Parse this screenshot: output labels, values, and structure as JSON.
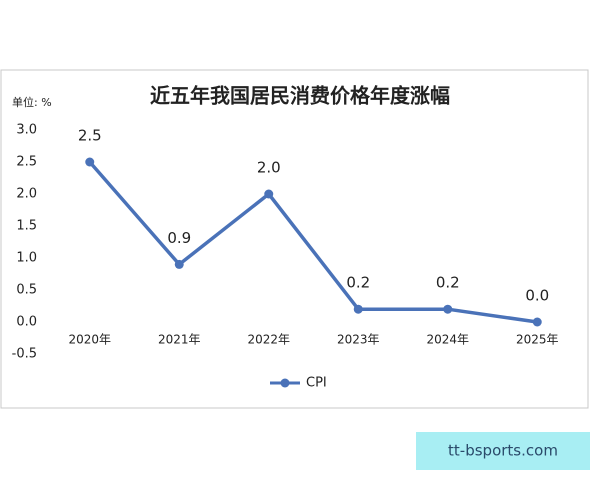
{
  "chart_data": {
    "type": "line",
    "title": "近五年我国居民消费价格年度涨幅",
    "ylabel": "单位:  %",
    "categories": [
      "2020年",
      "2021年",
      "2022年",
      "2023年",
      "2024年",
      "2025年"
    ],
    "series": [
      {
        "name": "CPI",
        "color": "#4a72b8",
        "values": [
          2.5,
          0.9,
          2.0,
          0.2,
          0.2,
          0
        ],
        "value_labels": [
          "2.5",
          "0.9",
          "2.0",
          "0.2",
          "0.2",
          "0.0"
        ]
      }
    ],
    "ylim": [
      -0.5,
      3.0
    ],
    "yticks": [
      {
        "value": 3,
        "label": "3.0"
      },
      2.5,
      {
        "value": 2,
        "label": "2.0"
      },
      1.5,
      {
        "value": 1,
        "label": "1.0"
      },
      0.5,
      {
        "value": 0,
        "label": "0.0"
      },
      -0.5
    ],
    "grid": false,
    "legend": "bottom"
  },
  "watermark": "tt-bsports.com"
}
